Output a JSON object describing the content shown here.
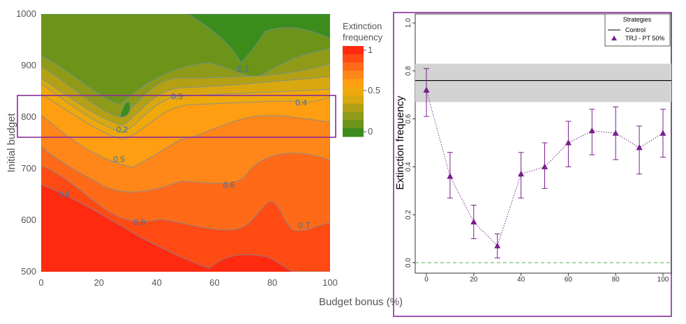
{
  "chart_data": [
    {
      "type": "contour",
      "xlabel": "Budget bonus (%)",
      "ylabel": "Initial budget",
      "xlim": [
        0,
        100
      ],
      "ylim": [
        500,
        1000
      ],
      "x_ticks": [
        "0",
        "20",
        "40",
        "60",
        "80",
        "100"
      ],
      "y_ticks": [
        "500",
        "600",
        "700",
        "800",
        "900",
        "1000"
      ],
      "colorbar": {
        "title_lines": [
          "Extinction",
          "frequency"
        ],
        "ticks": [
          "1",
          "0.5",
          "0"
        ],
        "colors": [
          "#ff2a10",
          "#ff4a14",
          "#ff6a18",
          "#ff8618",
          "#ff9e10",
          "#f0a90a",
          "#d9a810",
          "#b4a014",
          "#8f9a18",
          "#6c9418",
          "#3c8c1c"
        ]
      },
      "contour_labels": [
        {
          "text": "0.1",
          "x": 70,
          "y": 893
        },
        {
          "text": "0.3",
          "x": 47,
          "y": 840
        },
        {
          "text": "0.4",
          "x": 90,
          "y": 828
        },
        {
          "text": "0.2",
          "x": 28,
          "y": 776
        },
        {
          "text": "0.5",
          "x": 27,
          "y": 718
        },
        {
          "text": "0.6",
          "x": 65,
          "y": 668
        },
        {
          "text": "0.6",
          "x": 8,
          "y": 650
        },
        {
          "text": "0.8",
          "x": 34,
          "y": 596
        },
        {
          "text": "0.7",
          "x": 91,
          "y": 590
        }
      ],
      "highlight_box": {
        "x_range": [
          0,
          100
        ],
        "y_range": [
          760,
          842
        ],
        "color": "#8a2a9a"
      }
    },
    {
      "type": "scatter",
      "ylabel": "Extinction frequency",
      "xlim": [
        0,
        100
      ],
      "ylim": [
        0,
        1
      ],
      "x_ticks": [
        "0",
        "20",
        "40",
        "60",
        "80",
        "100"
      ],
      "y_ticks": [
        "0.0",
        "0.2",
        "0.4",
        "0.6",
        "0.8",
        "1.0"
      ],
      "legend": {
        "title": "Strategies",
        "position": "top-right",
        "entries": [
          "Control",
          "TRJ - PT 50%"
        ]
      },
      "control": {
        "value": 0.76,
        "band": [
          0.67,
          0.83
        ]
      },
      "reference_line": 0,
      "series": [
        {
          "name": "TRJ - PT 50%",
          "color": "#7a1f8c",
          "x": [
            0,
            10,
            20,
            30,
            40,
            50,
            60,
            70,
            80,
            90,
            100
          ],
          "y": [
            0.72,
            0.36,
            0.17,
            0.07,
            0.37,
            0.4,
            0.5,
            0.55,
            0.54,
            0.48,
            0.54
          ],
          "err_low": [
            0.61,
            0.27,
            0.1,
            0.02,
            0.27,
            0.31,
            0.4,
            0.45,
            0.43,
            0.37,
            0.44
          ],
          "err_high": [
            0.81,
            0.46,
            0.24,
            0.12,
            0.46,
            0.5,
            0.59,
            0.64,
            0.65,
            0.57,
            0.64
          ]
        }
      ]
    }
  ]
}
